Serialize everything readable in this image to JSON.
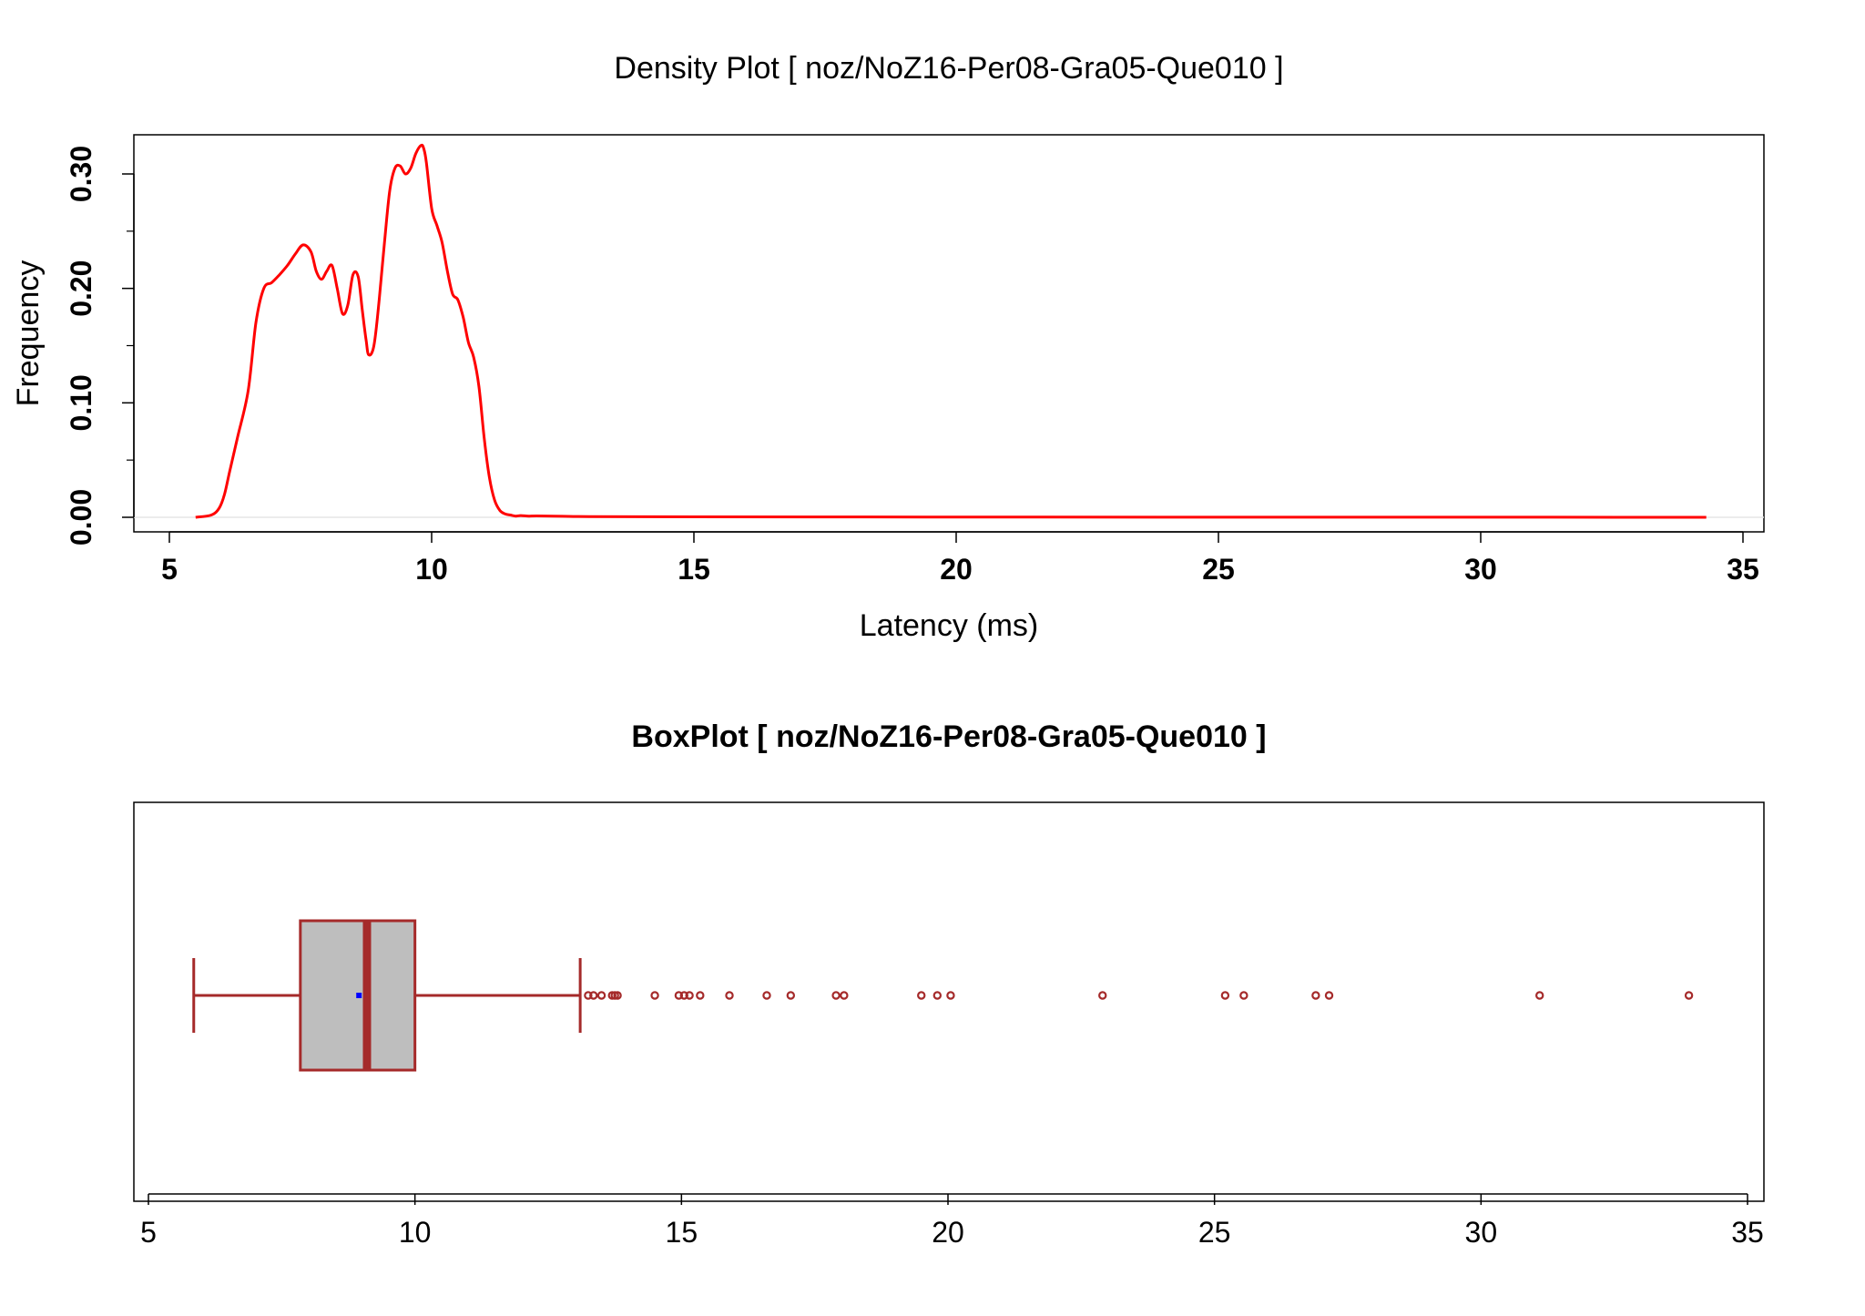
{
  "chart_data": [
    {
      "type": "line",
      "title": "Density Plot [ noz/NoZ16-Per08-Gra05-Que010 ]",
      "xlabel": "Latency (ms)",
      "ylabel": "Frequency",
      "xlim": [
        5,
        35
      ],
      "ylim": [
        0,
        0.33
      ],
      "x_ticks": [
        5,
        10,
        15,
        20,
        25,
        30,
        35
      ],
      "x_tick_labels": [
        "5",
        "10",
        "15",
        "20",
        "25",
        "30",
        "35"
      ],
      "y_ticks": [
        0.0,
        0.1,
        0.2,
        0.3
      ],
      "y_tick_labels": [
        "0.00",
        "0.10",
        "0.20",
        "0.30"
      ],
      "y_minor_ticks": [
        0.05,
        0.15,
        0.25
      ],
      "grid": false,
      "line_color": "#ff0000",
      "series": [
        {
          "x": [
            5.5,
            5.8,
            5.95,
            6.05,
            6.15,
            6.3,
            6.5,
            6.65,
            6.8,
            6.95,
            7.1,
            7.25,
            7.4,
            7.55,
            7.7,
            7.8,
            7.9,
            8.0,
            8.1,
            8.2,
            8.3,
            8.4,
            8.5,
            8.6,
            8.68,
            8.75,
            8.8,
            8.9,
            9.0,
            9.1,
            9.2,
            9.3,
            9.4,
            9.5,
            9.6,
            9.7,
            9.8,
            9.85,
            9.9,
            10.0,
            10.1,
            10.2,
            10.3,
            10.4,
            10.5,
            10.6,
            10.7,
            10.8,
            10.9,
            11.0,
            11.1,
            11.2,
            11.3,
            11.4,
            11.5,
            11.6,
            11.7,
            11.85,
            12.0,
            12.5,
            13.0,
            15.0,
            20.0,
            25.0,
            30.0,
            34.3
          ],
          "y": [
            0.0,
            0.002,
            0.008,
            0.02,
            0.04,
            0.07,
            0.11,
            0.17,
            0.2,
            0.205,
            0.212,
            0.22,
            0.23,
            0.238,
            0.232,
            0.215,
            0.208,
            0.215,
            0.22,
            0.2,
            0.178,
            0.185,
            0.212,
            0.21,
            0.18,
            0.155,
            0.142,
            0.15,
            0.19,
            0.24,
            0.285,
            0.305,
            0.307,
            0.3,
            0.305,
            0.318,
            0.325,
            0.322,
            0.31,
            0.27,
            0.255,
            0.24,
            0.215,
            0.195,
            0.19,
            0.175,
            0.153,
            0.14,
            0.115,
            0.07,
            0.035,
            0.015,
            0.006,
            0.003,
            0.002,
            0.001,
            0.0015,
            0.001,
            0.0012,
            0.0009,
            0.0006,
            0.0004,
            0.0002,
            0.0001,
            0.0001,
            0.0
          ]
        }
      ]
    },
    {
      "type": "box",
      "title": "BoxPlot [ noz/NoZ16-Per08-Gra05-Que010 ]",
      "orientation": "horizontal",
      "xlim": [
        5,
        35
      ],
      "x_ticks": [
        5,
        10,
        15,
        20,
        25,
        30,
        35
      ],
      "x_tick_labels": [
        "5",
        "10",
        "15",
        "20",
        "25",
        "30",
        "35"
      ],
      "box_fill": "#bebebe",
      "border_color": "#a52a2a",
      "mean_color": "#0000ff",
      "whisker_low": 5.85,
      "q1": 7.85,
      "median": 9.1,
      "q3": 10.0,
      "whisker_high": 13.1,
      "mean": 8.95,
      "outliers": [
        13.25,
        13.35,
        13.5,
        13.7,
        13.75,
        13.8,
        14.5,
        14.95,
        15.05,
        15.15,
        15.35,
        15.9,
        16.6,
        17.05,
        17.9,
        18.05,
        19.5,
        19.8,
        20.05,
        22.9,
        25.2,
        25.55,
        26.9,
        27.15,
        31.1,
        33.9
      ]
    }
  ]
}
